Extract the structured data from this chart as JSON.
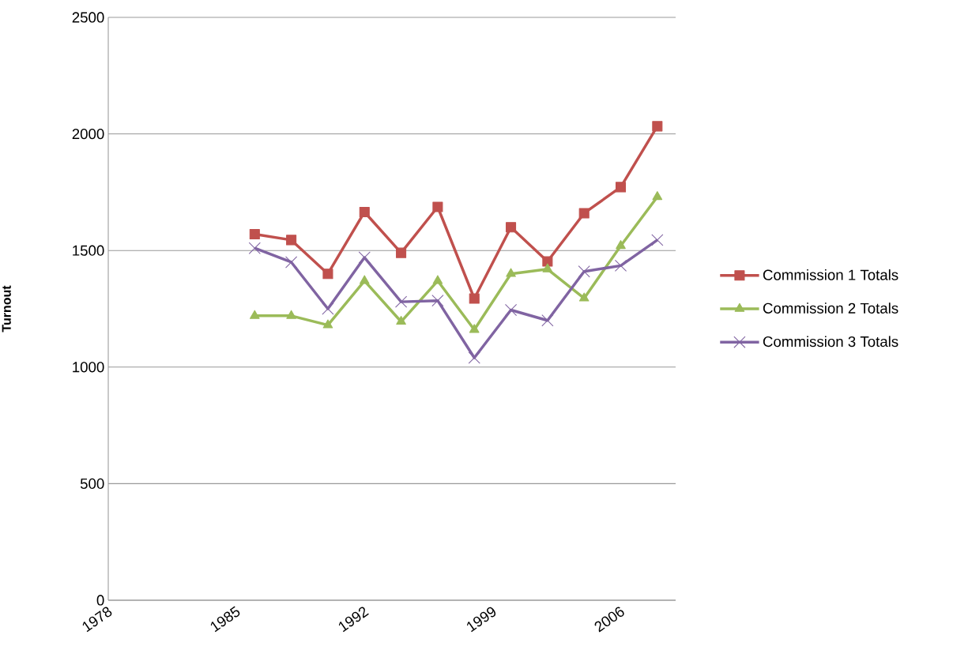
{
  "chart_data": {
    "type": "line",
    "ylabel": "Turnout",
    "x": [
      1986,
      1988,
      1990,
      1992,
      1994,
      1996,
      1998,
      2000,
      2002,
      2004,
      2006,
      2008
    ],
    "series": [
      {
        "name": "Commission  1 Totals",
        "color": "#c0504d",
        "marker": "square",
        "values": [
          1570,
          1545,
          1400,
          1665,
          1490,
          1687,
          1294,
          1600,
          1453,
          1660,
          1772,
          2033
        ]
      },
      {
        "name": "Commission 2 Totals",
        "color": "#9bbb59",
        "marker": "triangle",
        "values": [
          1220,
          1220,
          1180,
          1370,
          1195,
          1370,
          1160,
          1400,
          1420,
          1295,
          1520,
          1730
        ]
      },
      {
        "name": "Commission 3 Totals",
        "color": "#8064a2",
        "marker": "cross",
        "values": [
          1510,
          1450,
          1250,
          1470,
          1280,
          1285,
          1040,
          1245,
          1200,
          1410,
          1435,
          1545
        ]
      }
    ],
    "xlim": [
      1978,
      2009
    ],
    "xticks": [
      1978,
      1985,
      1992,
      1999,
      2006
    ],
    "ylim": [
      0,
      2500
    ],
    "yticks": [
      0,
      500,
      1000,
      1500,
      2000,
      2500
    ],
    "grid": "y",
    "legend": "right",
    "line_style": "solid"
  }
}
